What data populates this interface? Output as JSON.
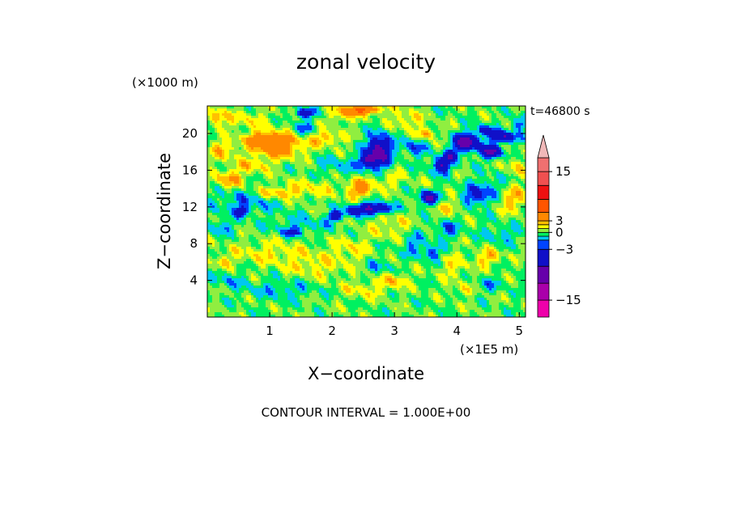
{
  "chart_data": {
    "type": "contour",
    "title": "zonal velocity",
    "xlabel": "X−coordinate",
    "ylabel": "Z−coordinate",
    "x_unit": "(×1E5 m)",
    "y_unit": "(×1000 m)",
    "time_label": "t=46800 s",
    "contour_label": "CONTOUR INTERVAL = 1.000E+00",
    "xlim": [
      0,
      5.1
    ],
    "ylim": [
      0,
      23
    ],
    "x_ticks": [
      1,
      2,
      3,
      4,
      5
    ],
    "x_tick_labels": [
      "1",
      "2",
      "3",
      "4",
      "5"
    ],
    "y_ticks": [
      4,
      8,
      12,
      16,
      20
    ],
    "y_tick_labels": [
      "4",
      "8",
      "12",
      "16",
      "20"
    ],
    "colorbar": {
      "colors": [
        "#ee00aa",
        "#aa00aa",
        "#6600aa",
        "#1010c8",
        "#0044ff",
        "#00c8f0",
        "#00f060",
        "#90ee40",
        "#ffff00",
        "#ffc000",
        "#ff8800",
        "#ff5500",
        "#ee1111",
        "#f05050",
        "#f07070",
        "#f0a0a0",
        "#f0b8b8"
      ],
      "bounds": [
        -18,
        -15,
        -12,
        -6,
        -3,
        -2,
        -1,
        0,
        1,
        2,
        3,
        6,
        9,
        12,
        15,
        18,
        21
      ],
      "tick_values": [
        15,
        3,
        0,
        -3,
        -15
      ],
      "tick_labels": [
        "15",
        "3",
        "0",
        "−3",
        "−15"
      ]
    },
    "field": {
      "background_level": 0,
      "features": [
        {
          "x": 0.15,
          "z": 21.8,
          "rx": 0.12,
          "rz": 0.9,
          "v": 3
        },
        {
          "x": 0.6,
          "z": 21.5,
          "rx": 0.4,
          "rz": 1.0,
          "v": 1.5
        },
        {
          "x": 1.1,
          "z": 18.7,
          "rx": 0.4,
          "rz": 1.3,
          "v": 5
        },
        {
          "x": 0.85,
          "z": 19.5,
          "rx": 0.25,
          "rz": 0.6,
          "v": 3
        },
        {
          "x": 0.25,
          "z": 18.2,
          "rx": 0.2,
          "rz": 1.0,
          "v": 2.5
        },
        {
          "x": 1.55,
          "z": 22.2,
          "rx": 0.15,
          "rz": 0.5,
          "v": -5
        },
        {
          "x": 1.55,
          "z": 20.5,
          "rx": 0.15,
          "rz": 0.8,
          "v": -2.5
        },
        {
          "x": 2.2,
          "z": 22.0,
          "rx": 0.2,
          "rz": 0.8,
          "v": 2.5
        },
        {
          "x": 2.5,
          "z": 22.6,
          "rx": 0.3,
          "rz": 0.5,
          "v": 6
        },
        {
          "x": 2.75,
          "z": 18.0,
          "rx": 0.18,
          "rz": 1.7,
          "v": -8
        },
        {
          "x": 2.55,
          "z": 17.0,
          "rx": 0.12,
          "rz": 0.8,
          "v": -5
        },
        {
          "x": 2.45,
          "z": 14.0,
          "rx": 0.2,
          "rz": 1.0,
          "v": 4
        },
        {
          "x": 2.65,
          "z": 11.8,
          "rx": 0.3,
          "rz": 0.6,
          "v": -7
        },
        {
          "x": 2.3,
          "z": 11.5,
          "rx": 0.12,
          "rz": 0.5,
          "v": -3
        },
        {
          "x": 3.55,
          "z": 13.0,
          "rx": 0.15,
          "rz": 0.7,
          "v": -6
        },
        {
          "x": 3.75,
          "z": 16.5,
          "rx": 0.15,
          "rz": 0.8,
          "v": -6
        },
        {
          "x": 4.15,
          "z": 19.0,
          "rx": 0.2,
          "rz": 0.9,
          "v": -8
        },
        {
          "x": 4.55,
          "z": 18.0,
          "rx": 0.15,
          "rz": 0.7,
          "v": -7
        },
        {
          "x": 4.75,
          "z": 19.6,
          "rx": 0.2,
          "rz": 0.6,
          "v": -6
        },
        {
          "x": 4.45,
          "z": 20.3,
          "rx": 0.15,
          "rz": 0.5,
          "v": -5
        },
        {
          "x": 3.9,
          "z": 17.6,
          "rx": 0.12,
          "rz": 0.6,
          "v": -5
        },
        {
          "x": 5.0,
          "z": 21.0,
          "rx": 0.12,
          "rz": 0.8,
          "v": -3
        },
        {
          "x": 4.5,
          "z": 14.0,
          "rx": 0.3,
          "rz": 1.3,
          "v": -2
        },
        {
          "x": 4.9,
          "z": 13.0,
          "rx": 0.25,
          "rz": 1.5,
          "v": 2.5
        },
        {
          "x": 4.3,
          "z": 13.0,
          "rx": 0.2,
          "rz": 1.0,
          "v": -3
        },
        {
          "x": 3.9,
          "z": 12.0,
          "rx": 0.2,
          "rz": 0.8,
          "v": 2
        },
        {
          "x": 3.2,
          "z": 21.5,
          "rx": 0.25,
          "rz": 1.0,
          "v": 2
        },
        {
          "x": 0.35,
          "z": 15.0,
          "rx": 0.25,
          "rz": 0.9,
          "v": 3
        },
        {
          "x": 0.6,
          "z": 12.5,
          "rx": 0.5,
          "rz": 1.3,
          "v": -2
        },
        {
          "x": 0.55,
          "z": 11.5,
          "rx": 0.08,
          "rz": 0.5,
          "v": -5
        },
        {
          "x": 1.6,
          "z": 14.0,
          "rx": 0.5,
          "rz": 1.0,
          "v": 1.5
        },
        {
          "x": 1.1,
          "z": 13.5,
          "rx": 0.3,
          "rz": 0.6,
          "v": 2.5
        },
        {
          "x": 2.05,
          "z": 11.0,
          "rx": 0.1,
          "rz": 0.5,
          "v": -6
        },
        {
          "x": 1.5,
          "z": 10.0,
          "rx": 0.5,
          "rz": 1.0,
          "v": -1.5
        },
        {
          "x": 1.35,
          "z": 9.2,
          "rx": 0.15,
          "rz": 0.4,
          "v": -3
        },
        {
          "x": 0.2,
          "z": 9.8,
          "rx": 0.2,
          "rz": 0.8,
          "v": -2
        },
        {
          "x": 2.95,
          "z": 10.0,
          "rx": 0.35,
          "rz": 1.5,
          "v": 1.5
        },
        {
          "x": 3.3,
          "z": 8.0,
          "rx": 0.2,
          "rz": 1.2,
          "v": -2
        },
        {
          "x": 3.6,
          "z": 7.0,
          "rx": 0.15,
          "rz": 0.8,
          "v": -3
        },
        {
          "x": 3.95,
          "z": 5.5,
          "rx": 0.25,
          "rz": 1.3,
          "v": 1.5
        },
        {
          "x": 4.5,
          "z": 6.5,
          "rx": 0.2,
          "rz": 0.9,
          "v": 2.5
        },
        {
          "x": 4.7,
          "z": 9.0,
          "rx": 0.3,
          "rz": 1.0,
          "v": -1.5
        },
        {
          "x": 4.5,
          "z": 3.5,
          "rx": 0.25,
          "rz": 0.8,
          "v": -1.5
        },
        {
          "x": 4.1,
          "z": 3.0,
          "rx": 0.2,
          "rz": 0.7,
          "v": 1.5
        },
        {
          "x": 1.0,
          "z": 7.0,
          "rx": 0.7,
          "rz": 1.3,
          "v": 1.5
        },
        {
          "x": 1.75,
          "z": 5.5,
          "rx": 0.5,
          "rz": 1.3,
          "v": 1.5
        },
        {
          "x": 1.2,
          "z": 3.0,
          "rx": 0.6,
          "rz": 1.0,
          "v": -1.5
        },
        {
          "x": 0.3,
          "z": 4.0,
          "rx": 0.25,
          "rz": 0.8,
          "v": -1.5
        },
        {
          "x": 0.25,
          "z": 6.0,
          "rx": 0.15,
          "rz": 0.6,
          "v": 2
        },
        {
          "x": 2.3,
          "z": 7.5,
          "rx": 0.3,
          "rz": 1.3,
          "v": 1.5
        },
        {
          "x": 2.5,
          "z": 3.0,
          "rx": 0.4,
          "rz": 1.0,
          "v": 1.5
        },
        {
          "x": 2.75,
          "z": 5.5,
          "rx": 0.25,
          "rz": 0.8,
          "v": -1.5
        },
        {
          "x": 3.0,
          "z": 4.0,
          "rx": 0.2,
          "rz": 0.8,
          "v": 2.5
        },
        {
          "x": 2.9,
          "z": 15.0,
          "rx": 0.3,
          "rz": 1.0,
          "v": 1.5
        },
        {
          "x": 2.1,
          "z": 16.5,
          "rx": 0.35,
          "rz": 1.0,
          "v": -1.5
        },
        {
          "x": 0.7,
          "z": 16.5,
          "rx": 0.3,
          "rz": 0.8,
          "v": 2
        },
        {
          "x": 3.85,
          "z": 9.5,
          "rx": 0.2,
          "rz": 0.9,
          "v": -2.5
        },
        {
          "x": 3.3,
          "z": 18.5,
          "rx": 0.2,
          "rz": 1.0,
          "v": -2.5
        },
        {
          "x": 3.5,
          "z": 20.0,
          "rx": 0.15,
          "rz": 0.6,
          "v": 3
        },
        {
          "x": 1.9,
          "z": 19.5,
          "rx": 0.3,
          "rz": 0.8,
          "v": 2.5
        },
        {
          "x": 4.95,
          "z": 16.5,
          "rx": 0.15,
          "rz": 0.9,
          "v": 2
        }
      ]
    }
  }
}
